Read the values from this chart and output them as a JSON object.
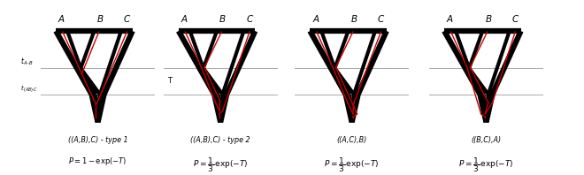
{
  "panels": [
    {
      "label": "((A,B),C) - type 1",
      "type": "type1"
    },
    {
      "label": "((A,B),C) - type 2",
      "type": "type2"
    },
    {
      "label": "((A,C),B)",
      "type": "type3"
    },
    {
      "label": "((B,C),A)",
      "type": "type4"
    }
  ],
  "species_color": "#000000",
  "gene_color": "#cc0000",
  "gray_color": "#aaaaaa",
  "bg_color": "#ffffff",
  "lw_sp": 2.5,
  "lw_gn": 1.0,
  "taxa": [
    "A",
    "B",
    "C"
  ]
}
